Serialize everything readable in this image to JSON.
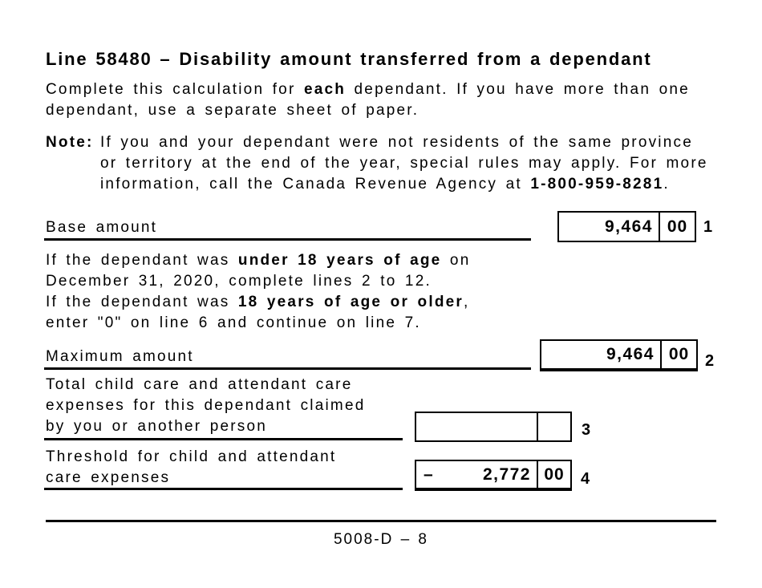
{
  "page": {
    "title": "Line 58480 – Disability amount transferred from a dependant",
    "footer_text": "5008-D – 8"
  },
  "intro": {
    "l1s1": "Complete this calculation for ",
    "l1s2": "each",
    "l1s3": " dependant. If you have more than one",
    "l2": "dependant, use a separate sheet of paper."
  },
  "note": {
    "label": "Note:",
    "l1": "If you and your dependant were not residents of the same province",
    "l2": "or territory at the end of the year, special rules may apply. For more",
    "l3s1": "information, call the Canada Revenue Agency at ",
    "l3s2": "1-800-959-8281",
    "l3s3": "."
  },
  "age_note": {
    "l1s1": "If the dependant was ",
    "l1s2": "under 18 years of age",
    "l1s3": " on",
    "l2": "December 31, 2020, complete lines 2 to 12.",
    "l3s1": "If the dependant was ",
    "l3s2": "18 years of age or older",
    "l3s3": ",",
    "l4": "enter \"0\" on line 6 and continue on line 7."
  },
  "rows": {
    "base": {
      "label": "Base amount",
      "dollars": "9,464",
      "cents": "00",
      "line_no": "1"
    },
    "maximum": {
      "label": "Maximum amount",
      "dollars": "9,464",
      "cents": "00",
      "line_no": "2"
    },
    "childcare": {
      "label_l1": "Total child care and attendant care",
      "label_l2": "expenses for this dependant claimed",
      "label_l3": "by you or another person",
      "dollars": "",
      "cents": "",
      "line_no": "3"
    },
    "threshold": {
      "label_l1": "Threshold for child and attendant",
      "label_l2": "care expenses",
      "operator": "–",
      "dollars": "2,772",
      "cents": "00",
      "line_no": "4"
    }
  }
}
